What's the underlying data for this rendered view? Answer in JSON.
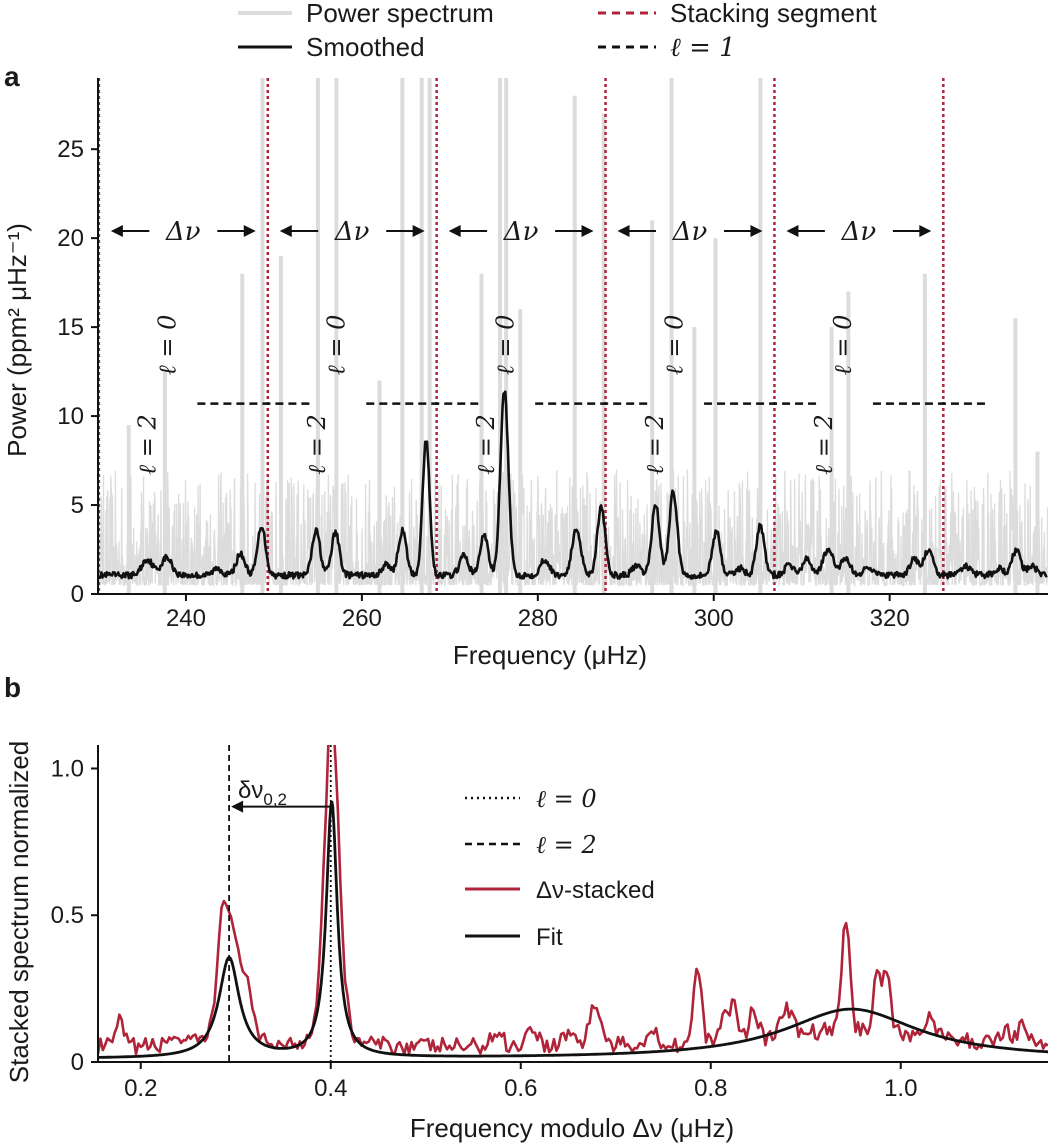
{
  "legend": {
    "power_spectrum": "Power spectrum",
    "smoothed": "Smoothed",
    "stacking_segment": "Stacking segment",
    "l1": "ℓ = 1"
  },
  "panel_a": {
    "label": "a",
    "xlabel": "Frequency (μHz)",
    "ylabel": "Power (ppm² μHz⁻¹)",
    "delta_nu_label": "Δν",
    "mode_labels": {
      "l0": "ℓ = 0",
      "l2": "ℓ = 2"
    }
  },
  "panel_b": {
    "label": "b",
    "xlabel": "Frequency modulo Δν (μHz)",
    "ylabel": "Stacked spectrum normalized",
    "annotation": "δν",
    "annotation_sub": "0,2",
    "legend": {
      "l0": "ℓ = 0",
      "l2": "ℓ = 2",
      "stacked": "Δν-stacked",
      "fit": "Fit"
    }
  },
  "colors": {
    "raw": "#dcdcdc",
    "smoothed": "#111111",
    "stacking": "#b0243a",
    "stacked": "#b0243a",
    "fit": "#111111"
  },
  "chart_data": [
    {
      "type": "line",
      "xlim": [
        230,
        338
      ],
      "ylim": [
        0,
        29
      ],
      "xticks": [
        240,
        260,
        280,
        300,
        320
      ],
      "yticks": [
        0,
        5,
        10,
        15,
        20,
        25
      ],
      "stacking_segments": [
        230.1,
        249.3,
        268.5,
        287.7,
        306.9,
        326.1
      ],
      "l1_level": 10.7,
      "l1_segments": [
        [
          241.3,
          254.3
        ],
        [
          260.5,
          273.5
        ],
        [
          279.7,
          292.7
        ],
        [
          298.9,
          311.9
        ],
        [
          318.1,
          331.1
        ]
      ],
      "delta_nu_arrows_y": 20.4,
      "mode_label_x": {
        "l2": [
          235.5,
          254.8,
          274.0,
          293.2,
          312.4
        ],
        "l0": [
          237.8,
          257.0,
          276.2,
          295.4,
          314.6
        ]
      },
      "smoothed_peaks": [
        [
          235.6,
          0.9,
          0.6
        ],
        [
          237.8,
          1.0,
          0.6
        ],
        [
          243.6,
          0.4,
          0.5
        ],
        [
          246.2,
          1.2,
          0.5
        ],
        [
          248.6,
          2.8,
          0.45
        ],
        [
          254.8,
          2.5,
          0.45
        ],
        [
          257.0,
          2.4,
          0.45
        ],
        [
          262.8,
          0.6,
          0.5
        ],
        [
          264.6,
          2.5,
          0.45
        ],
        [
          267.3,
          7.6,
          0.4
        ],
        [
          271.6,
          1.1,
          0.5
        ],
        [
          273.9,
          2.3,
          0.45
        ],
        [
          276.2,
          10.4,
          0.45
        ],
        [
          280.8,
          0.9,
          0.5
        ],
        [
          284.4,
          2.6,
          0.5
        ],
        [
          287.2,
          3.8,
          0.45
        ],
        [
          291.2,
          0.5,
          0.5
        ],
        [
          293.4,
          4.0,
          0.45
        ],
        [
          295.4,
          4.7,
          0.45
        ],
        [
          300.3,
          2.5,
          0.45
        ],
        [
          303.0,
          0.4,
          0.5
        ],
        [
          305.3,
          2.8,
          0.45
        ],
        [
          308.6,
          0.6,
          0.5
        ],
        [
          310.6,
          0.9,
          0.5
        ],
        [
          313.0,
          1.4,
          0.6
        ],
        [
          315.0,
          1.0,
          0.5
        ],
        [
          317.6,
          0.5,
          0.5
        ],
        [
          322.8,
          0.9,
          0.5
        ],
        [
          324.4,
          1.4,
          0.5
        ],
        [
          328.6,
          0.5,
          0.6
        ],
        [
          332.4,
          0.4,
          0.5
        ],
        [
          334.4,
          1.4,
          0.5
        ],
        [
          336.2,
          0.5,
          0.5
        ]
      ],
      "smoothed_baseline": 1.05,
      "raw_spikes": [
        [
          233.5,
          9.5
        ],
        [
          237.6,
          12.5
        ],
        [
          246.4,
          18.0
        ],
        [
          248.7,
          29.0
        ],
        [
          250.8,
          19.0
        ],
        [
          255.0,
          29.0
        ],
        [
          257.1,
          29.0
        ],
        [
          262.0,
          12.0
        ],
        [
          264.6,
          29.0
        ],
        [
          266.8,
          29.0
        ],
        [
          267.7,
          29.0
        ],
        [
          273.6,
          18.0
        ],
        [
          275.7,
          29.0
        ],
        [
          276.4,
          29.0
        ],
        [
          278.0,
          16.0
        ],
        [
          284.2,
          28.0
        ],
        [
          287.5,
          27.0
        ],
        [
          293.0,
          21.0
        ],
        [
          295.2,
          29.0
        ],
        [
          297.8,
          15.0
        ],
        [
          300.2,
          20.0
        ],
        [
          305.3,
          29.0
        ],
        [
          313.4,
          15.0
        ],
        [
          315.3,
          17.0
        ],
        [
          324.0,
          18.0
        ],
        [
          334.3,
          15.5
        ],
        [
          336.8,
          8.0
        ]
      ]
    },
    {
      "type": "line",
      "xlim": [
        0.155,
        1.155
      ],
      "ylim": [
        0,
        1.08
      ],
      "xticks": [
        0.2,
        0.4,
        0.6,
        0.8,
        1.0
      ],
      "yticks": [
        0,
        0.5,
        1.0
      ],
      "l0_position": 0.4,
      "l2_position": 0.293,
      "arrow_y": 0.87,
      "fit_lorentzians": [
        {
          "center": 0.293,
          "height": 0.34,
          "hwhm": 0.013
        },
        {
          "center": 0.401,
          "height": 0.87,
          "hwhm": 0.007
        },
        {
          "center": 0.948,
          "height": 0.17,
          "hwhm": 0.085
        }
      ],
      "fit_offset": 0.01,
      "stacked_peaks": [
        [
          0.178,
          0.09,
          0.004
        ],
        [
          0.235,
          0.04,
          0.005
        ],
        [
          0.287,
          0.42,
          0.006
        ],
        [
          0.3,
          0.22,
          0.006
        ],
        [
          0.312,
          0.2,
          0.005
        ],
        [
          0.401,
          0.92,
          0.008
        ],
        [
          0.575,
          0.05,
          0.006
        ],
        [
          0.612,
          0.07,
          0.006
        ],
        [
          0.65,
          0.05,
          0.006
        ],
        [
          0.678,
          0.15,
          0.006
        ],
        [
          0.738,
          0.05,
          0.006
        ],
        [
          0.786,
          0.28,
          0.004
        ],
        [
          0.812,
          0.08,
          0.005
        ],
        [
          0.824,
          0.13,
          0.005
        ],
        [
          0.845,
          0.11,
          0.005
        ],
        [
          0.88,
          0.1,
          0.006
        ],
        [
          0.942,
          0.42,
          0.004
        ],
        [
          0.975,
          0.2,
          0.004
        ],
        [
          0.985,
          0.23,
          0.004
        ],
        [
          1.03,
          0.08,
          0.006
        ],
        [
          1.11,
          0.05,
          0.006
        ],
        [
          1.128,
          0.07,
          0.005
        ]
      ]
    }
  ]
}
